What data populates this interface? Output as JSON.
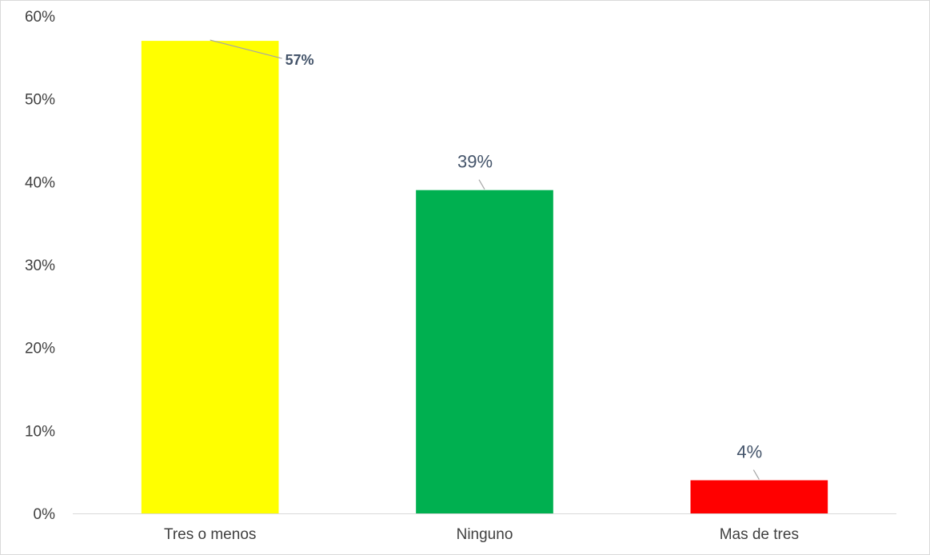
{
  "chart_data": {
    "type": "bar",
    "title": "",
    "xlabel": "",
    "ylabel": "",
    "categories": [
      "Tres o menos",
      "Ninguno",
      "Mas de tres"
    ],
    "values": [
      57,
      39,
      4
    ],
    "data_labels": [
      "57%",
      "39%",
      "4%"
    ],
    "colors": [
      "#ffff00",
      "#00b050",
      "#ff0000"
    ],
    "ylim": [
      0,
      60
    ],
    "yticks": [
      0,
      10,
      20,
      30,
      40,
      50,
      60
    ],
    "ytick_labels": [
      "0%",
      "10%",
      "20%",
      "30%",
      "40%",
      "50%",
      "60%"
    ],
    "grid": false,
    "legend": "none"
  }
}
